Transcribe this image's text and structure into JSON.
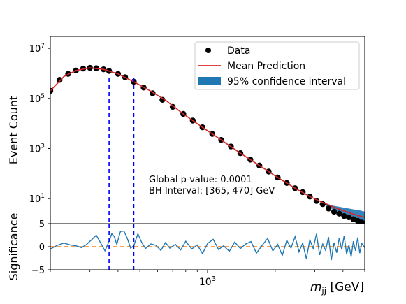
{
  "chart_data": [
    {
      "type": "scatter",
      "title": "",
      "xlabel": "",
      "ylabel": "Event Count",
      "y_scale": "log",
      "x_scale": "log",
      "xlim": [
        200,
        5000
      ],
      "ylim": [
        1,
        30000000
      ],
      "y_ticks": [
        {
          "value": 10,
          "label": "10^1"
        },
        {
          "value": 1000,
          "label": "10^3"
        },
        {
          "value": 100000,
          "label": "10^5"
        },
        {
          "value": 10000000,
          "label": "10^7"
        }
      ],
      "legend": {
        "placement": "top-right",
        "entries": [
          {
            "label": "Data",
            "marker": "dot",
            "color": "#000000"
          },
          {
            "label": "Mean Prediction",
            "marker": "line",
            "color": "#d62728"
          },
          {
            "label": "95% confidence interval",
            "marker": "patch",
            "color": "#1f77b4"
          }
        ]
      },
      "series": [
        {
          "name": "Data",
          "style": "points",
          "color": "#000000",
          "x": [
            200,
            220,
            240,
            260,
            280,
            300,
            320,
            345,
            365,
            400,
            430,
            470,
            520,
            570,
            630,
            700,
            780,
            860,
            950,
            1050,
            1150,
            1270,
            1400,
            1550,
            1700,
            1870,
            2050,
            2250,
            2450,
            2650,
            2850,
            3050,
            3250,
            3450,
            3650,
            3850,
            4050,
            4250,
            4450,
            4650,
            4850,
            5000
          ],
          "y": [
            200000,
            550000,
            950000,
            1300000,
            1550000,
            1650000,
            1600000,
            1450000,
            1250000,
            950000,
            700000,
            460000,
            270000,
            160000,
            88000,
            46000,
            24000,
            13000,
            7000,
            3800,
            2200,
            1200,
            650,
            360,
            210,
            120,
            70,
            42,
            26,
            18,
            12,
            8,
            6,
            4,
            3,
            2.5,
            2,
            1.8,
            1.5,
            1.3,
            1.1,
            1
          ]
        },
        {
          "name": "Mean Prediction",
          "style": "line",
          "color": "#d62728",
          "x": [
            200,
            230,
            260,
            300,
            345,
            400,
            470,
            550,
            650,
            780,
            950,
            1150,
            1400,
            1700,
            2050,
            2450,
            2850,
            3250,
            3650,
            4050,
            4450,
            4850,
            5000
          ],
          "y": [
            200000,
            750000,
            1300000,
            1650000,
            1450000,
            950000,
            460000,
            210000,
            85000,
            24000,
            7000,
            2200,
            650,
            210,
            70,
            26,
            12,
            7,
            4.5,
            3.2,
            2.4,
            1.9,
            1.8
          ]
        },
        {
          "name": "95% confidence interval",
          "style": "band",
          "color": "#1f77b4",
          "x": [
            3200,
            3600,
            4000,
            4400,
            4800,
            5000
          ],
          "y_low": [
            6.5,
            3.8,
            2.3,
            1.4,
            0.9,
            0.75
          ],
          "y_high": [
            7.5,
            5.2,
            4.4,
            3.8,
            3.3,
            3.0
          ]
        }
      ],
      "reference_lines": [
        {
          "axis": "x",
          "value": 365,
          "style": "dashed",
          "color": "#0000ff"
        },
        {
          "axis": "x",
          "value": 470,
          "style": "dashed",
          "color": "#0000ff"
        }
      ],
      "annotations": [
        "Global p-value: 0.0001",
        "BH Interval: [365, 470] GeV"
      ]
    },
    {
      "type": "line",
      "title": "",
      "xlabel": "m_jj [GeV]",
      "xlabel_main": "m",
      "xlabel_sub": "jj",
      "xlabel_unit": "[GeV]",
      "ylabel": "Significance",
      "x_scale": "log",
      "xlim": [
        200,
        5000
      ],
      "ylim": [
        -5,
        5
      ],
      "y_ticks": [
        {
          "value": -5,
          "label": "−5"
        },
        {
          "value": 0,
          "label": "0"
        },
        {
          "value": 5,
          "label": "5"
        }
      ],
      "x_ticks": [
        {
          "value": 1000,
          "label": "10^3"
        }
      ],
      "series": [
        {
          "name": "",
          "color": "#1f77b4",
          "x": [
            200,
            215,
            230,
            245,
            260,
            275,
            290,
            305,
            320,
            335,
            350,
            365,
            375,
            385,
            395,
            410,
            425,
            440,
            455,
            470,
            490,
            510,
            530,
            560,
            590,
            620,
            650,
            680,
            720,
            760,
            800,
            850,
            900,
            950,
            1000,
            1060,
            1120,
            1180,
            1250,
            1320,
            1400,
            1480,
            1560,
            1650,
            1750,
            1850,
            1950,
            2050,
            2150,
            2250,
            2350,
            2450,
            2550,
            2650,
            2750,
            2850,
            2950,
            3050,
            3150,
            3250,
            3350,
            3450,
            3550,
            3650,
            3750,
            3850,
            3950,
            4050,
            4150,
            4250,
            4350,
            4450,
            4550,
            4650,
            4750,
            4850,
            5000
          ],
          "y": [
            -0.5,
            0.3,
            0.8,
            0.4,
            0.2,
            -0.2,
            0.5,
            1.5,
            2.5,
            0.8,
            -0.9,
            1.2,
            2.8,
            2.2,
            0.5,
            3.3,
            3.4,
            1.8,
            -0.3,
            0.2,
            2.8,
            0.9,
            -0.4,
            0.6,
            0.3,
            -0.8,
            0.9,
            -0.3,
            0.5,
            -0.7,
            1.2,
            -0.5,
            0.4,
            -1.5,
            0.7,
            1.6,
            -0.6,
            0.2,
            -1.0,
            1.0,
            -0.4,
            0.6,
            1.1,
            -1.4,
            0.3,
            1.8,
            -0.9,
            0.5,
            -1.9,
            1.4,
            -0.3,
            2.2,
            -1.1,
            0.8,
            -2.6,
            1.5,
            -0.4,
            2.8,
            -1.8,
            0.6,
            -0.8,
            2.1,
            -2.9,
            0.9,
            -1.3,
            1.9,
            -0.6,
            2.4,
            -1.6,
            0.4,
            -2.2,
            1.2,
            -0.9,
            2.0,
            -1.4,
            0.7,
            -0.2
          ]
        },
        {
          "name": "",
          "style": "dashed",
          "color": "#ff7f0e",
          "x": [
            200,
            5000
          ],
          "y": [
            0,
            0
          ]
        }
      ],
      "reference_lines": [
        {
          "axis": "x",
          "value": 365,
          "style": "dashed",
          "color": "#0000ff"
        },
        {
          "axis": "x",
          "value": 470,
          "style": "dashed",
          "color": "#0000ff"
        }
      ]
    }
  ]
}
